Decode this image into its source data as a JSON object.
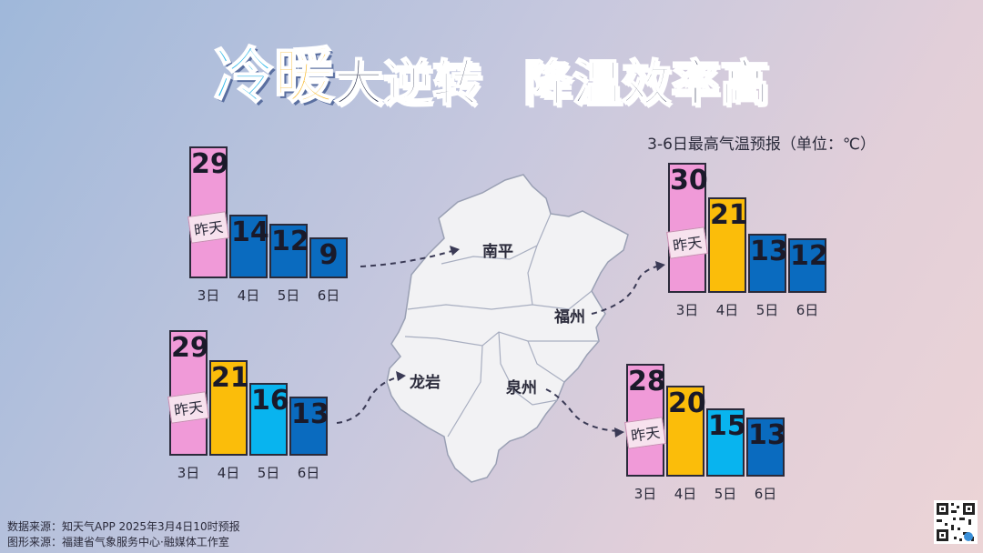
{
  "title": {
    "part1": "冷",
    "part2": "暖",
    "part3": "大逆转",
    "part4": "降温效率高"
  },
  "subtitle": "3-6日最高气温预报（单位：℃）",
  "chart_data": [
    {
      "type": "bar",
      "city": "南平",
      "categories": [
        "3日",
        "4日",
        "5日",
        "6日"
      ],
      "values": [
        29,
        14,
        12,
        9
      ],
      "annotation": "昨天"
    },
    {
      "type": "bar",
      "city": "龙岩",
      "categories": [
        "3日",
        "4日",
        "5日",
        "6日"
      ],
      "values": [
        29,
        21,
        16,
        13
      ],
      "annotation": "昨天"
    },
    {
      "type": "bar",
      "city": "福州",
      "categories": [
        "3日",
        "4日",
        "5日",
        "6日"
      ],
      "values": [
        30,
        21,
        13,
        12
      ],
      "annotation": "昨天"
    },
    {
      "type": "bar",
      "city": "泉州",
      "categories": [
        "3日",
        "4日",
        "5日",
        "6日"
      ],
      "values": [
        28,
        20,
        15,
        13
      ],
      "annotation": "昨天"
    }
  ],
  "colors": {
    "pink": "#f09ad8",
    "yellow": "#fbbd0a",
    "light_blue": "#08b4ef",
    "dark_blue": "#0a6bbf",
    "map_fill": "#f2f2f4"
  },
  "footer": {
    "source_data": "数据来源：知天气APP 2025年3月4日10时预报",
    "source_graphic": "图形来源：福建省气象服务中心·融媒体工作室"
  }
}
